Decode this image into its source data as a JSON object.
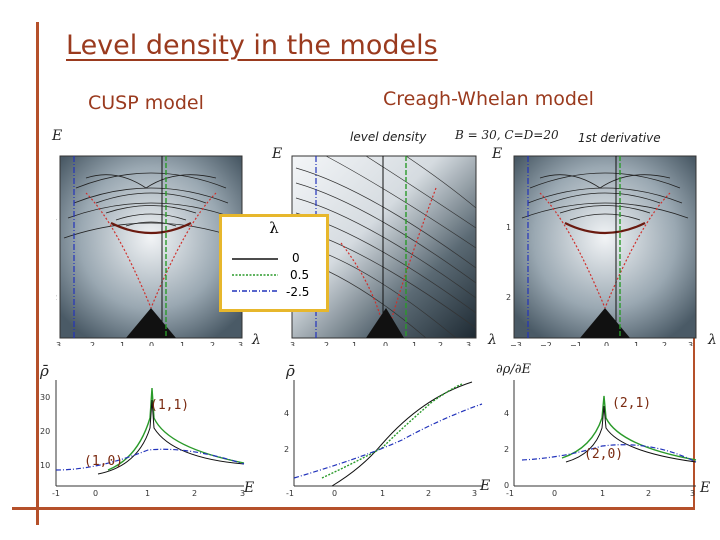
{
  "slide": {
    "title": "Level density in the models",
    "subtitle_left": "CUSP model",
    "subtitle_right": "Creagh-Whelan model",
    "label_level_density": "level density",
    "label_params": "B = 30, C=D=20",
    "label_derivative": "1st derivative",
    "axis_E": "E",
    "axis_lambda": "λ"
  },
  "legend": {
    "title": "λ",
    "entries": [
      "0",
      "0.5",
      "-2.5"
    ]
  },
  "bottom": {
    "ylabel_rho": "ρ̄",
    "ylabel_deriv": "∂ρ/∂E",
    "xlabel": "E",
    "labels": [
      "(1,1)",
      "(1,0)",
      "(2,1)",
      "(2,0)"
    ]
  },
  "colors": {
    "accent": "#9a3a1e",
    "rule": "#b5502a",
    "legend_border": "#e7b72c"
  }
}
